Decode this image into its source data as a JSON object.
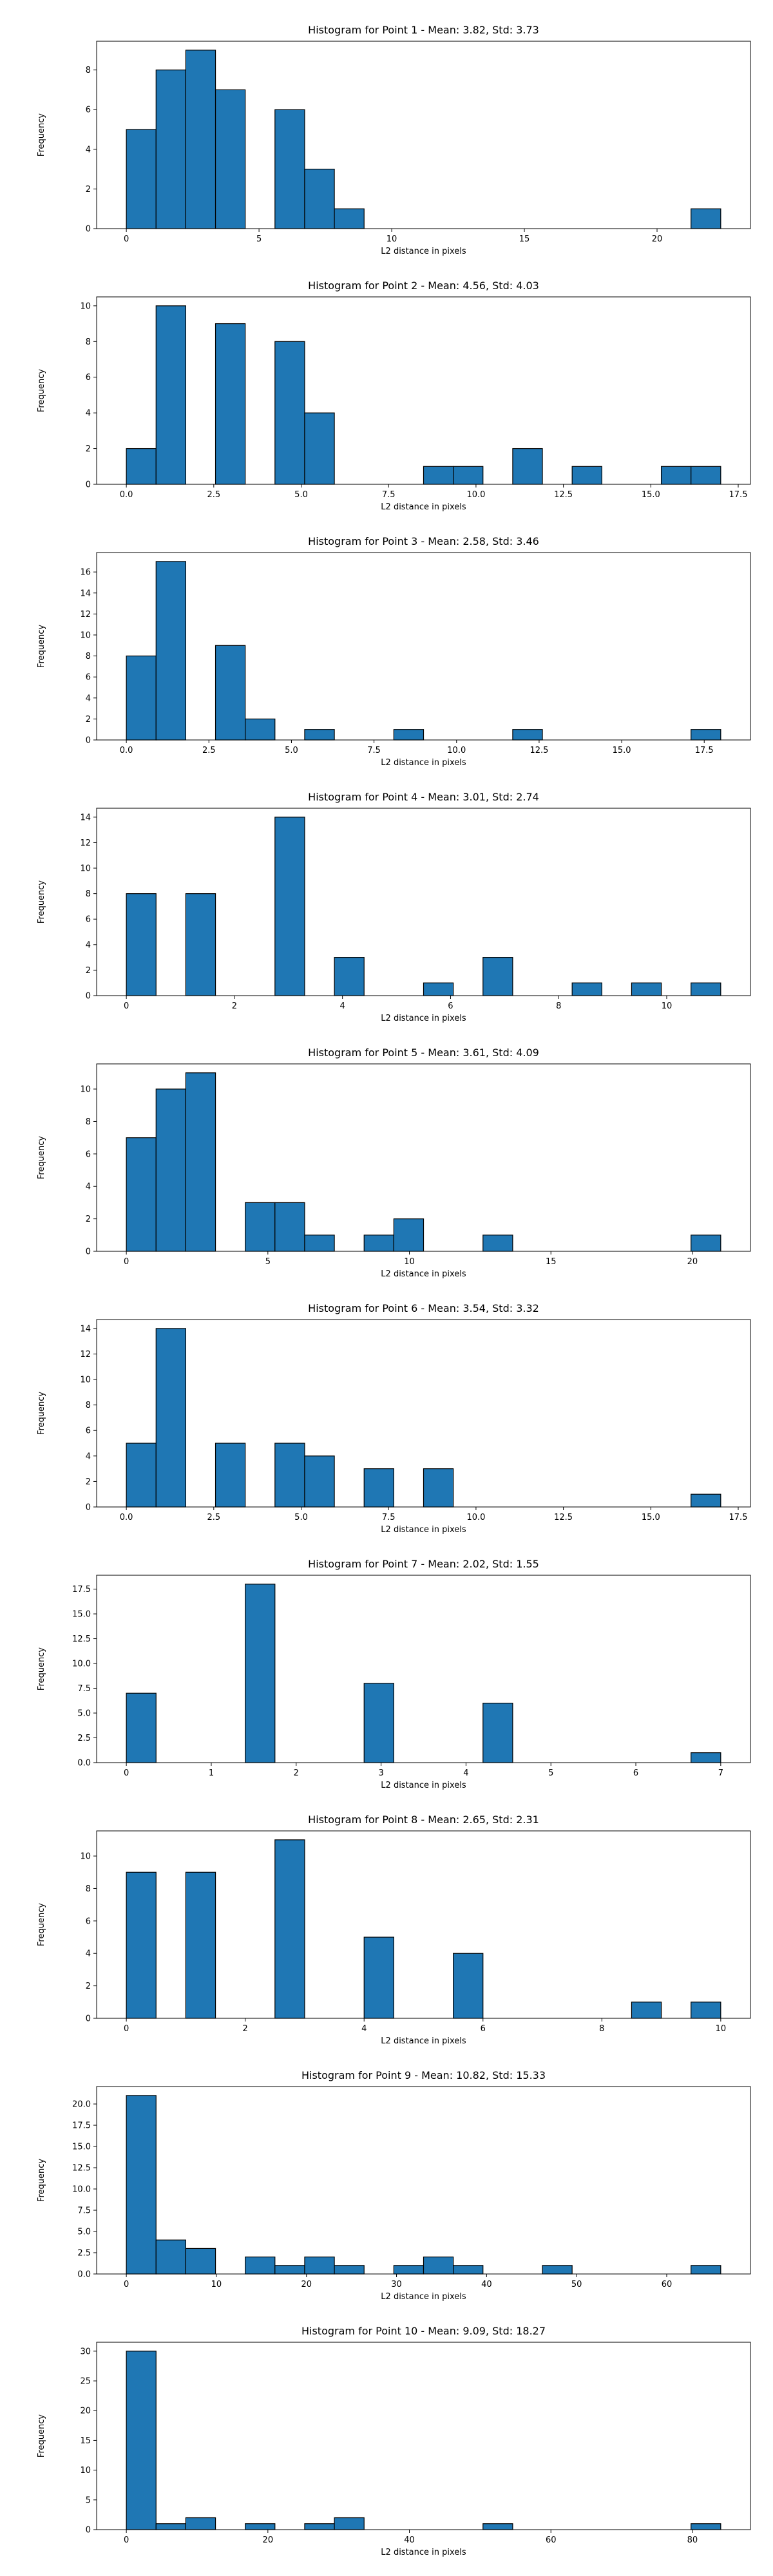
{
  "colors": {
    "bar_fill": "#1f77b4",
    "bar_edge": "#000000",
    "axis": "#000000",
    "background": "#ffffff"
  },
  "chart_data": [
    {
      "type": "bar",
      "title": "Histogram for Point 1 - Mean: 3.82, Std: 3.73",
      "xlabel": "L2 distance in pixels",
      "ylabel": "Frequency",
      "grid": false,
      "bin_edges": [
        0.0,
        1.12,
        2.24,
        3.36,
        4.48,
        5.6,
        6.72,
        7.84,
        8.96,
        10.08,
        11.2,
        12.32,
        13.44,
        14.56,
        15.68,
        16.8,
        17.92,
        19.04,
        20.16,
        21.28,
        22.4
      ],
      "values": [
        5,
        8,
        9,
        7,
        0,
        6,
        3,
        1,
        0,
        0,
        0,
        0,
        0,
        0,
        0,
        0,
        0,
        0,
        0,
        1
      ],
      "xlim": [
        -1.12,
        23.52
      ],
      "ylim": [
        0,
        9.45
      ],
      "xticks": [
        0,
        5,
        10,
        15,
        20
      ],
      "xtick_labels": [
        "0",
        "5",
        "10",
        "15",
        "20"
      ],
      "yticks": [
        0,
        2,
        4,
        6,
        8
      ],
      "ytick_labels": [
        "0",
        "2",
        "4",
        "6",
        "8"
      ]
    },
    {
      "type": "bar",
      "title": "Histogram for Point 2 - Mean: 4.56, Std: 4.03",
      "xlabel": "L2 distance in pixels",
      "ylabel": "Frequency",
      "grid": false,
      "bin_edges": [
        0.0,
        0.85,
        1.7,
        2.55,
        3.4,
        4.25,
        5.1,
        5.95,
        6.8,
        7.65,
        8.5,
        9.35,
        10.2,
        11.05,
        11.9,
        12.75,
        13.6,
        14.45,
        15.3,
        16.15,
        17.0
      ],
      "values": [
        2,
        10,
        0,
        9,
        0,
        8,
        4,
        0,
        0,
        0,
        1,
        1,
        0,
        2,
        0,
        1,
        0,
        0,
        1,
        1
      ],
      "xlim": [
        -0.85,
        17.85
      ],
      "ylim": [
        0,
        10.5
      ],
      "xticks": [
        0,
        2.5,
        5,
        7.5,
        10,
        12.5,
        15,
        17.5
      ],
      "xtick_labels": [
        "0.0",
        "2.5",
        "5.0",
        "7.5",
        "10.0",
        "12.5",
        "15.0",
        "17.5"
      ],
      "yticks": [
        0,
        2,
        4,
        6,
        8,
        10
      ],
      "ytick_labels": [
        "0",
        "2",
        "4",
        "6",
        "8",
        "10"
      ]
    },
    {
      "type": "bar",
      "title": "Histogram for Point 3 - Mean: 2.58, Std: 3.46",
      "xlabel": "L2 distance in pixels",
      "ylabel": "Frequency",
      "grid": false,
      "bin_edges": [
        0.0,
        0.9,
        1.8,
        2.7,
        3.6,
        4.5,
        5.4,
        6.3,
        7.2,
        8.1,
        9.0,
        9.9,
        10.8,
        11.7,
        12.6,
        13.5,
        14.4,
        15.3,
        16.2,
        17.1,
        18.0
      ],
      "values": [
        8,
        17,
        0,
        9,
        2,
        0,
        1,
        0,
        0,
        1,
        0,
        0,
        0,
        1,
        0,
        0,
        0,
        0,
        0,
        1
      ],
      "xlim": [
        -0.9,
        18.9
      ],
      "ylim": [
        0,
        17.85
      ],
      "xticks": [
        0,
        2.5,
        5,
        7.5,
        10,
        12.5,
        15,
        17.5
      ],
      "xtick_labels": [
        "0.0",
        "2.5",
        "5.0",
        "7.5",
        "10.0",
        "12.5",
        "15.0",
        "17.5"
      ],
      "yticks": [
        0,
        2,
        4,
        6,
        8,
        10,
        12,
        14,
        16
      ],
      "ytick_labels": [
        "0",
        "2",
        "4",
        "6",
        "8",
        "10",
        "12",
        "14",
        "16"
      ]
    },
    {
      "type": "bar",
      "title": "Histogram for Point 4 - Mean: 3.01, Std: 2.74",
      "xlabel": "L2 distance in pixels",
      "ylabel": "Frequency",
      "grid": false,
      "bin_edges": [
        0.0,
        0.55,
        1.1,
        1.65,
        2.2,
        2.75,
        3.3,
        3.85,
        4.4,
        4.95,
        5.5,
        6.05,
        6.6,
        7.15,
        7.7,
        8.25,
        8.8,
        9.35,
        9.9,
        10.45,
        11.0
      ],
      "values": [
        8,
        0,
        8,
        0,
        0,
        14,
        0,
        3,
        0,
        0,
        1,
        0,
        3,
        0,
        0,
        1,
        0,
        1,
        0,
        1
      ],
      "xlim": [
        -0.55,
        11.55
      ],
      "ylim": [
        0,
        14.7
      ],
      "xticks": [
        0,
        2,
        4,
        6,
        8,
        10
      ],
      "xtick_labels": [
        "0",
        "2",
        "4",
        "6",
        "8",
        "10"
      ],
      "yticks": [
        0,
        2,
        4,
        6,
        8,
        10,
        12,
        14
      ],
      "ytick_labels": [
        "0",
        "2",
        "4",
        "6",
        "8",
        "10",
        "12",
        "14"
      ]
    },
    {
      "type": "bar",
      "title": "Histogram for Point 5 - Mean: 3.61, Std: 4.09",
      "xlabel": "L2 distance in pixels",
      "ylabel": "Frequency",
      "grid": false,
      "bin_edges": [
        0.0,
        1.05,
        2.1,
        3.15,
        4.2,
        5.25,
        6.3,
        7.35,
        8.4,
        9.45,
        10.5,
        11.55,
        12.6,
        13.65,
        14.7,
        15.75,
        16.8,
        17.85,
        18.9,
        19.95,
        21.0
      ],
      "values": [
        7,
        10,
        11,
        0,
        3,
        3,
        1,
        0,
        1,
        2,
        0,
        0,
        1,
        0,
        0,
        0,
        0,
        0,
        0,
        1
      ],
      "xlim": [
        -1.05,
        22.05
      ],
      "ylim": [
        0,
        11.55
      ],
      "xticks": [
        0,
        5,
        10,
        15,
        20
      ],
      "xtick_labels": [
        "0",
        "5",
        "10",
        "15",
        "20"
      ],
      "yticks": [
        0,
        2,
        4,
        6,
        8,
        10
      ],
      "ytick_labels": [
        "0",
        "2",
        "4",
        "6",
        "8",
        "10"
      ]
    },
    {
      "type": "bar",
      "title": "Histogram for Point 6 - Mean: 3.54, Std: 3.32",
      "xlabel": "L2 distance in pixels",
      "ylabel": "Frequency",
      "grid": false,
      "bin_edges": [
        0.0,
        0.85,
        1.7,
        2.55,
        3.4,
        4.25,
        5.1,
        5.95,
        6.8,
        7.65,
        8.5,
        9.35,
        10.2,
        11.05,
        11.9,
        12.75,
        13.6,
        14.45,
        15.3,
        16.15,
        17.0
      ],
      "values": [
        5,
        14,
        0,
        5,
        0,
        5,
        4,
        0,
        3,
        0,
        3,
        0,
        0,
        0,
        0,
        0,
        0,
        0,
        0,
        1
      ],
      "xlim": [
        -0.85,
        17.85
      ],
      "ylim": [
        0,
        14.7
      ],
      "xticks": [
        0,
        2.5,
        5,
        7.5,
        10,
        12.5,
        15,
        17.5
      ],
      "xtick_labels": [
        "0.0",
        "2.5",
        "5.0",
        "7.5",
        "10.0",
        "12.5",
        "15.0",
        "17.5"
      ],
      "yticks": [
        0,
        2,
        4,
        6,
        8,
        10,
        12,
        14
      ],
      "ytick_labels": [
        "0",
        "2",
        "4",
        "6",
        "8",
        "10",
        "12",
        "14"
      ]
    },
    {
      "type": "bar",
      "title": "Histogram for Point 7 - Mean: 2.02, Std: 1.55",
      "xlabel": "L2 distance in pixels",
      "ylabel": "Frequency",
      "grid": false,
      "bin_edges": [
        0.0,
        0.35,
        0.7,
        1.05,
        1.4,
        1.75,
        2.1,
        2.45,
        2.8,
        3.15,
        3.5,
        3.85,
        4.2,
        4.55,
        4.9,
        5.25,
        5.6,
        5.95,
        6.3,
        6.65,
        7.0
      ],
      "values": [
        7,
        0,
        0,
        0,
        18,
        0,
        0,
        0,
        8,
        0,
        0,
        0,
        6,
        0,
        0,
        0,
        0,
        0,
        0,
        1
      ],
      "xlim": [
        -0.35,
        7.35
      ],
      "ylim": [
        0,
        18.9
      ],
      "xticks": [
        0,
        1,
        2,
        3,
        4,
        5,
        6,
        7
      ],
      "xtick_labels": [
        "0",
        "1",
        "2",
        "3",
        "4",
        "5",
        "6",
        "7"
      ],
      "yticks": [
        0,
        2.5,
        5,
        7.5,
        10,
        12.5,
        15,
        17.5
      ],
      "ytick_labels": [
        "0.0",
        "2.5",
        "5.0",
        "7.5",
        "10.0",
        "12.5",
        "15.0",
        "17.5"
      ]
    },
    {
      "type": "bar",
      "title": "Histogram for Point 8 - Mean: 2.65, Std: 2.31",
      "xlabel": "L2 distance in pixels",
      "ylabel": "Frequency",
      "grid": false,
      "bin_edges": [
        0.0,
        0.5,
        1.0,
        1.5,
        2.0,
        2.5,
        3.0,
        3.5,
        4.0,
        4.5,
        5.0,
        5.5,
        6.0,
        6.5,
        7.0,
        7.5,
        8.0,
        8.5,
        9.0,
        9.5,
        10.0
      ],
      "values": [
        9,
        0,
        9,
        0,
        0,
        11,
        0,
        0,
        5,
        0,
        0,
        4,
        0,
        0,
        0,
        0,
        0,
        1,
        0,
        1
      ],
      "xlim": [
        -0.5,
        10.5
      ],
      "ylim": [
        0,
        11.55
      ],
      "xticks": [
        0,
        2,
        4,
        6,
        8,
        10
      ],
      "xtick_labels": [
        "0",
        "2",
        "4",
        "6",
        "8",
        "10"
      ],
      "yticks": [
        0,
        2,
        4,
        6,
        8,
        10
      ],
      "ytick_labels": [
        "0",
        "2",
        "4",
        "6",
        "8",
        "10"
      ]
    },
    {
      "type": "bar",
      "title": "Histogram for Point 9 - Mean: 10.82, Std: 15.33",
      "xlabel": "L2 distance in pixels",
      "ylabel": "Frequency",
      "grid": false,
      "bin_edges": [
        0.0,
        3.3,
        6.6,
        9.9,
        13.2,
        16.5,
        19.8,
        23.1,
        26.4,
        29.7,
        33.0,
        36.3,
        39.6,
        42.9,
        46.2,
        49.5,
        52.8,
        56.1,
        59.4,
        62.7,
        66.0
      ],
      "values": [
        21,
        4,
        3,
        0,
        2,
        1,
        2,
        1,
        0,
        1,
        2,
        1,
        0,
        0,
        1,
        0,
        0,
        0,
        0,
        1
      ],
      "xlim": [
        -3.3,
        69.3
      ],
      "ylim": [
        0,
        22.05
      ],
      "xticks": [
        0,
        10,
        20,
        30,
        40,
        50,
        60
      ],
      "xtick_labels": [
        "0",
        "10",
        "20",
        "30",
        "40",
        "50",
        "60"
      ],
      "yticks": [
        0,
        2.5,
        5,
        7.5,
        10,
        12.5,
        15,
        17.5,
        20
      ],
      "ytick_labels": [
        "0.0",
        "2.5",
        "5.0",
        "7.5",
        "10.0",
        "12.5",
        "15.0",
        "17.5",
        "20.0"
      ]
    },
    {
      "type": "bar",
      "title": "Histogram for Point 10 - Mean: 9.09, Std: 18.27",
      "xlabel": "L2 distance in pixels",
      "ylabel": "Frequency",
      "grid": false,
      "bin_edges": [
        0.0,
        4.2,
        8.4,
        12.6,
        16.8,
        21.0,
        25.2,
        29.4,
        33.6,
        37.8,
        42.0,
        46.2,
        50.4,
        54.6,
        58.8,
        63.0,
        67.2,
        71.4,
        75.6,
        79.8,
        84.0
      ],
      "values": [
        30,
        1,
        2,
        0,
        1,
        0,
        1,
        2,
        0,
        0,
        0,
        0,
        1,
        0,
        0,
        0,
        0,
        0,
        0,
        1
      ],
      "xlim": [
        -4.2,
        88.2
      ],
      "ylim": [
        0,
        31.5
      ],
      "xticks": [
        0,
        20,
        40,
        60,
        80
      ],
      "xtick_labels": [
        "0",
        "20",
        "40",
        "60",
        "80"
      ],
      "yticks": [
        0,
        5,
        10,
        15,
        20,
        25,
        30
      ],
      "ytick_labels": [
        "0",
        "5",
        "10",
        "15",
        "20",
        "25",
        "30"
      ]
    }
  ]
}
